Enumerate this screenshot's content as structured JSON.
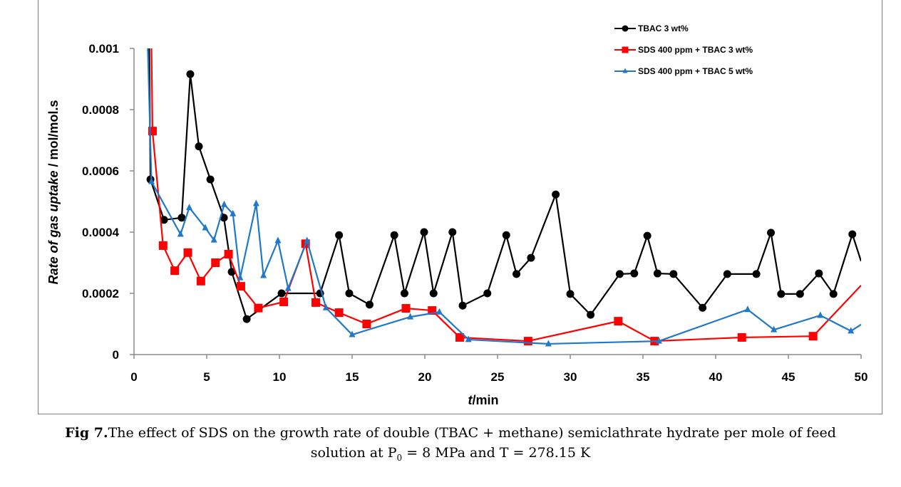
{
  "chart_data": {
    "type": "line",
    "title": "",
    "xlabel_italic": "t",
    "xlabel_rest": "/min",
    "ylabel_italic": "Rate of gas uptake",
    "ylabel_rest": " / mol/mol.s",
    "xlim": [
      0,
      50
    ],
    "ylim": [
      0,
      0.001
    ],
    "xticks": [
      0,
      5,
      10,
      15,
      20,
      25,
      30,
      35,
      40,
      45,
      50
    ],
    "yticks": [
      0,
      0.0002,
      0.0004,
      0.0006,
      0.0008,
      0.001
    ],
    "ytick_labels": [
      "0",
      "0.0002",
      "0.0004",
      "0.0006",
      "0.0008",
      "0.001"
    ],
    "grid": false,
    "legend_position": "top-right",
    "series": [
      {
        "name": "TBAC 3 wt%",
        "color": "#000000",
        "marker": "circle",
        "lead_in": [
          1.05,
          0.001
        ],
        "x": [
          1.13,
          2.06,
          3.28,
          3.87,
          4.46,
          5.25,
          6.18,
          6.72,
          7.75,
          10.15,
          12.8,
          14.1,
          14.8,
          16.2,
          17.9,
          18.6,
          19.95,
          20.6,
          21.9,
          22.6,
          24.3,
          25.6,
          26.3,
          27.3,
          29.0,
          30.0,
          31.4,
          33.4,
          34.4,
          35.3,
          36.0,
          37.1,
          39.1,
          40.8,
          42.8,
          43.8,
          44.5,
          45.8,
          47.1,
          48.1,
          49.4
        ],
        "y": [
          0.000572,
          0.00044,
          0.000447,
          0.000916,
          0.00068,
          0.000572,
          0.000447,
          0.00027,
          0.000116,
          0.0002,
          0.0002,
          0.00039,
          0.0002,
          0.000163,
          0.00039,
          0.0002,
          0.0004,
          0.0002,
          0.0004,
          0.00016,
          0.0002,
          0.00039,
          0.000263,
          0.000316,
          0.000523,
          0.000198,
          0.00013,
          0.000263,
          0.000265,
          0.000388,
          0.000265,
          0.000263,
          0.000153,
          0.000263,
          0.000263,
          0.000398,
          0.000198,
          0.000198,
          0.000265,
          0.000198,
          0.000393
        ],
        "tail": [
          50,
          0.000305
        ]
      },
      {
        "name": "SDS 400 ppm + TBAC 3 wt%",
        "color": "#ff0000",
        "marker": "square",
        "lead_in": [
          1.2,
          0.001
        ],
        "x": [
          1.27,
          2.0,
          2.8,
          3.7,
          4.6,
          5.6,
          6.5,
          7.35,
          8.55,
          10.3,
          11.8,
          12.5,
          14.1,
          16.0,
          18.7,
          20.5,
          22.4,
          27.1,
          33.3,
          35.8,
          41.8,
          46.7
        ],
        "y": [
          0.00073,
          0.000356,
          0.000274,
          0.000333,
          0.00024,
          0.0003,
          0.000328,
          0.000223,
          0.000152,
          0.000172,
          0.000362,
          0.00017,
          0.000137,
          0.0001,
          0.000151,
          0.000144,
          5.6e-05,
          4.4e-05,
          0.000109,
          4.4e-05,
          5.6e-05,
          6e-05
        ],
        "tail": [
          50,
          0.000226
        ]
      },
      {
        "name": "SDS 400 ppm + TBAC 5 wt%",
        "color": "#1f78c8",
        "marker": "triangle",
        "lead_in": [
          0.95,
          0.001
        ],
        "x": [
          1.2,
          3.2,
          3.8,
          4.9,
          5.5,
          6.2,
          6.8,
          7.3,
          8.4,
          8.9,
          9.9,
          10.6,
          11.9,
          13.2,
          15.0,
          19.0,
          21.0,
          23.0,
          28.5,
          36.1,
          42.2,
          44.0,
          47.2,
          49.3
        ],
        "y": [
          0.000565,
          0.000393,
          0.00048,
          0.000414,
          0.000374,
          0.00049,
          0.00046,
          0.000251,
          0.000493,
          0.000258,
          0.000372,
          0.000216,
          0.000372,
          0.000153,
          6.5e-05,
          0.000123,
          0.000139,
          4.9e-05,
          3.5e-05,
          4.4e-05,
          0.000147,
          8.1e-05,
          0.000128,
          7.7e-05
        ],
        "tail": [
          50,
          9.8e-05
        ]
      }
    ]
  },
  "caption": {
    "label": "Fig 7.",
    "line1": "The effect of SDS on the growth rate of double (TBAC + methane) semiclathrate hydrate per mole of feed",
    "line2_pre": "solution at P",
    "line2_sub": "0",
    "line2_post": " = 8 MPa and T = 278.15 K"
  }
}
